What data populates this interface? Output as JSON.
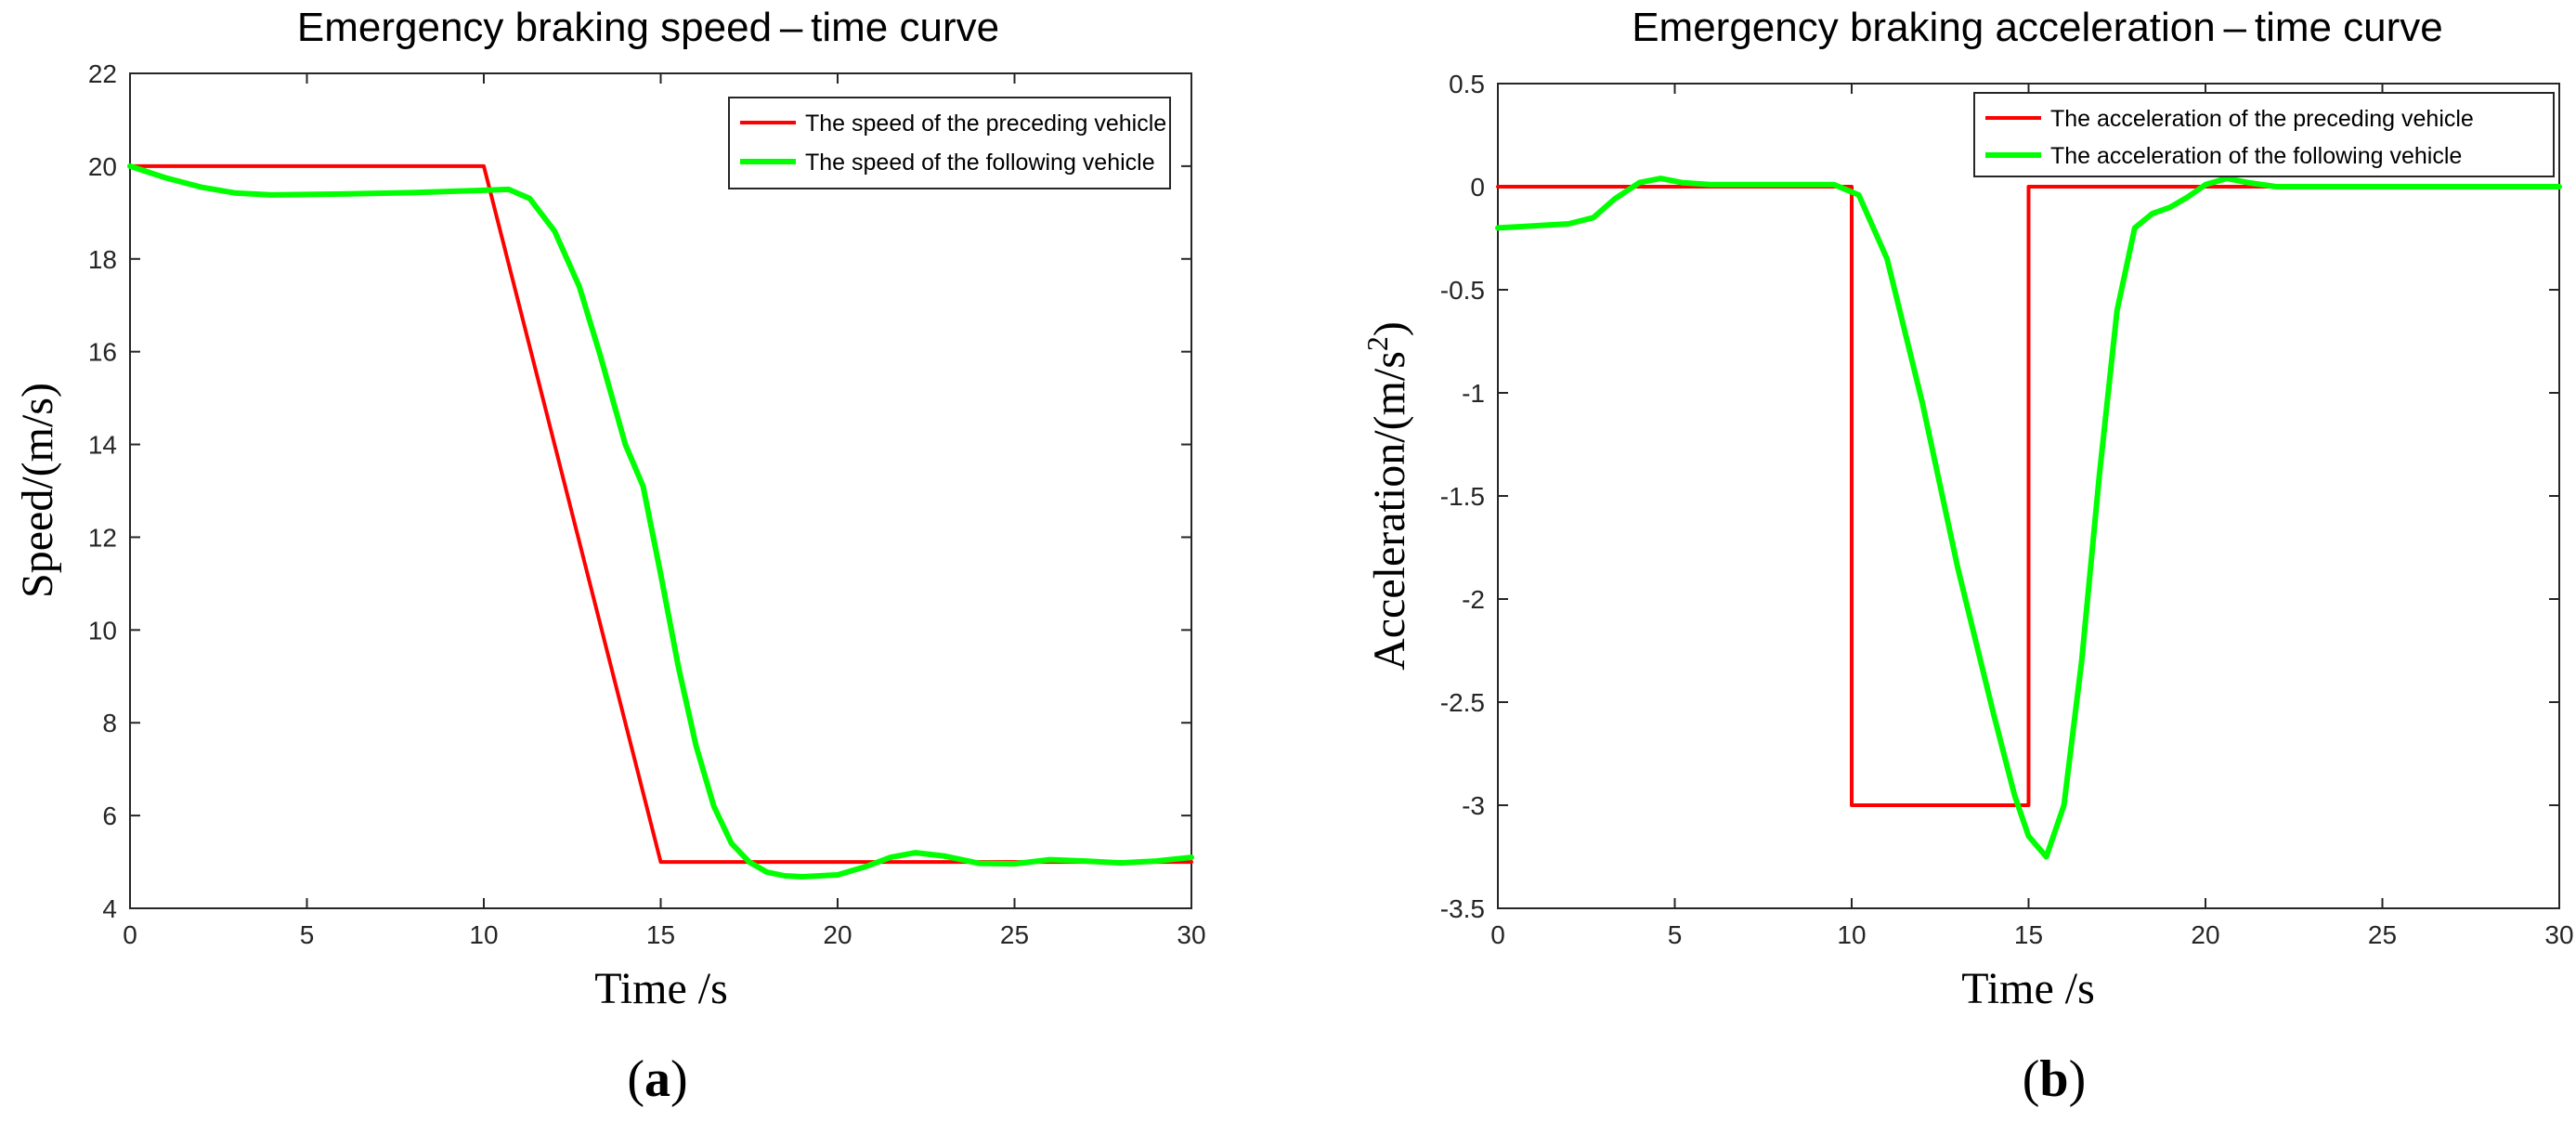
{
  "figure": {
    "panel_labels": [
      {
        "open": "(",
        "letter": "a",
        "close": ")"
      },
      {
        "open": "(",
        "letter": "b",
        "close": ")"
      }
    ]
  },
  "chart_data": [
    {
      "type": "line",
      "title": "Emergency braking speed – time curve",
      "xlabel": "Time /s",
      "ylabel": "Speed/(m/s)",
      "xlim": [
        0,
        30
      ],
      "ylim": [
        4,
        22
      ],
      "xticks": [
        0,
        5,
        10,
        15,
        20,
        25,
        30
      ],
      "yticks": [
        4,
        6,
        8,
        10,
        12,
        14,
        16,
        18,
        20,
        22
      ],
      "grid": false,
      "legend_position": "top-right",
      "series": [
        {
          "name": "The speed of the preceding vehicle",
          "color": "#ff0000",
          "x": [
            0,
            10,
            15,
            30
          ],
          "y": [
            20,
            20,
            5,
            5
          ]
        },
        {
          "name": "The speed of the following vehicle",
          "color": "#00ff00",
          "x": [
            0,
            1,
            2,
            3,
            4,
            6,
            8,
            10,
            10.7,
            11.3,
            12,
            12.7,
            13.3,
            14,
            14.5,
            15,
            15.5,
            16,
            16.5,
            17,
            17.5,
            18,
            18.5,
            19,
            20,
            20.8,
            21.5,
            22.2,
            23,
            24,
            25,
            26,
            27,
            28,
            29,
            30
          ],
          "y": [
            20,
            19.75,
            19.55,
            19.42,
            19.38,
            19.4,
            19.43,
            19.48,
            19.5,
            19.3,
            18.6,
            17.4,
            15.9,
            14.0,
            13.1,
            11.2,
            9.2,
            7.5,
            6.2,
            5.4,
            5.0,
            4.78,
            4.7,
            4.68,
            4.72,
            4.9,
            5.1,
            5.2,
            5.13,
            4.97,
            4.96,
            5.05,
            5.02,
            4.98,
            5.02,
            5.1
          ]
        }
      ]
    },
    {
      "type": "line",
      "title": "Emergency braking acceleration – time curve",
      "xlabel": "Time /s",
      "ylabel": "Acceleration/(m/s",
      "ylabel_sup": "2",
      "ylabel_tail": ")",
      "xlim": [
        0,
        30
      ],
      "ylim": [
        -3.5,
        0.5
      ],
      "xticks": [
        0,
        5,
        10,
        15,
        20,
        25,
        30
      ],
      "yticks": [
        -3.5,
        -3,
        -2.5,
        -2,
        -1.5,
        -1,
        -0.5,
        0,
        0.5
      ],
      "grid": false,
      "legend_position": "top-right",
      "series": [
        {
          "name": "The acceleration of the preceding vehicle",
          "color": "#ff0000",
          "x": [
            0,
            10,
            10,
            15,
            15,
            30
          ],
          "y": [
            0,
            0,
            -3,
            -3,
            0,
            0
          ]
        },
        {
          "name": "The acceleration of the following vehicle",
          "color": "#00ff00",
          "x": [
            0,
            1,
            2,
            2.7,
            3.3,
            4,
            4.6,
            5.2,
            6,
            8,
            9.5,
            10.2,
            11,
            12,
            13,
            14,
            14.6,
            15,
            15.5,
            16,
            16.5,
            17,
            17.5,
            18,
            18.5,
            19,
            19.5,
            20,
            20.6,
            21.2,
            22,
            24,
            26,
            28,
            30
          ],
          "y": [
            -0.2,
            -0.19,
            -0.18,
            -0.15,
            -0.06,
            0.02,
            0.04,
            0.02,
            0.01,
            0.01,
            0.01,
            -0.04,
            -0.35,
            -1.05,
            -1.85,
            -2.55,
            -2.95,
            -3.15,
            -3.25,
            -3.0,
            -2.3,
            -1.4,
            -0.6,
            -0.2,
            -0.13,
            -0.1,
            -0.05,
            0.01,
            0.04,
            0.02,
            0.0,
            0.0,
            0.0,
            0.0,
            0.0
          ]
        }
      ]
    }
  ]
}
